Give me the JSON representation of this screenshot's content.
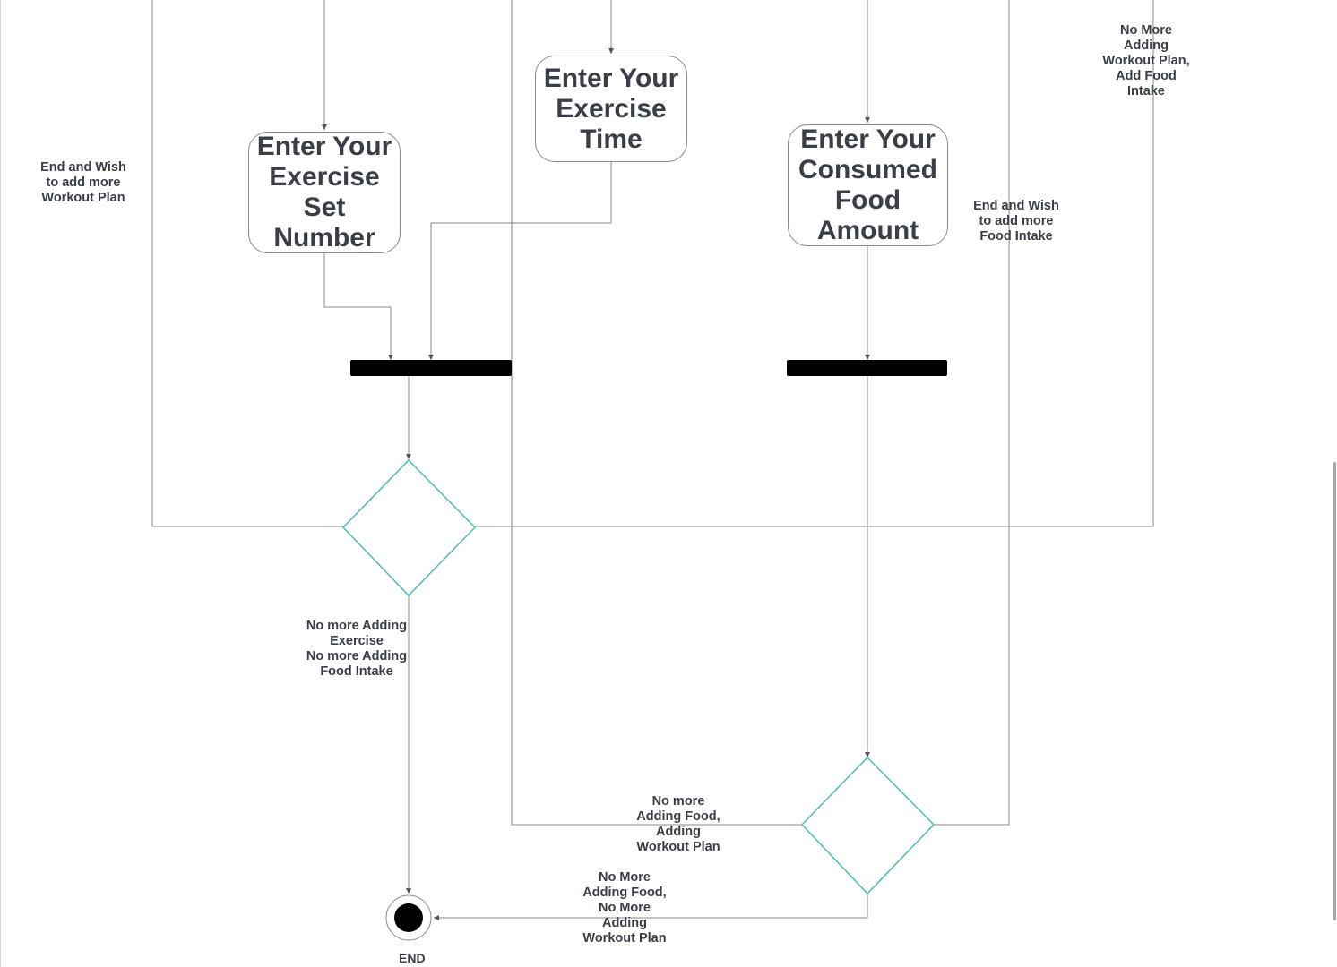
{
  "diagram": {
    "type": "activity-diagram",
    "colors": {
      "line": "#8a8a8a",
      "decision": "#4dbdb3",
      "bar": "#000000",
      "text": "#3a3f47"
    },
    "activities": {
      "set_number": "Enter Your\nExercise\nSet Number",
      "exercise_time": "Enter Your\nExercise\nTime",
      "food_amount": "Enter Your\nConsumed\nFood\nAmount"
    },
    "labels": {
      "end_wish_workout": "End and Wish\nto add more\nWorkout Plan",
      "no_more_workout_add_food": "No More\nAdding\nWorkout Plan,\nAdd Food\nIntake",
      "end_wish_food": "End and Wish\nto add more\nFood Intake",
      "no_more_exercise_food": "No more Adding\nExercise\nNo more Adding\nFood Intake",
      "no_more_food_workout_lower": "No more\nAdding Food,\nAdding\nWorkout Plan",
      "no_more_food_no_more_workout": "No More\nAdding Food,\nNo More\nAdding\nWorkout Plan"
    },
    "end_label": "END"
  }
}
